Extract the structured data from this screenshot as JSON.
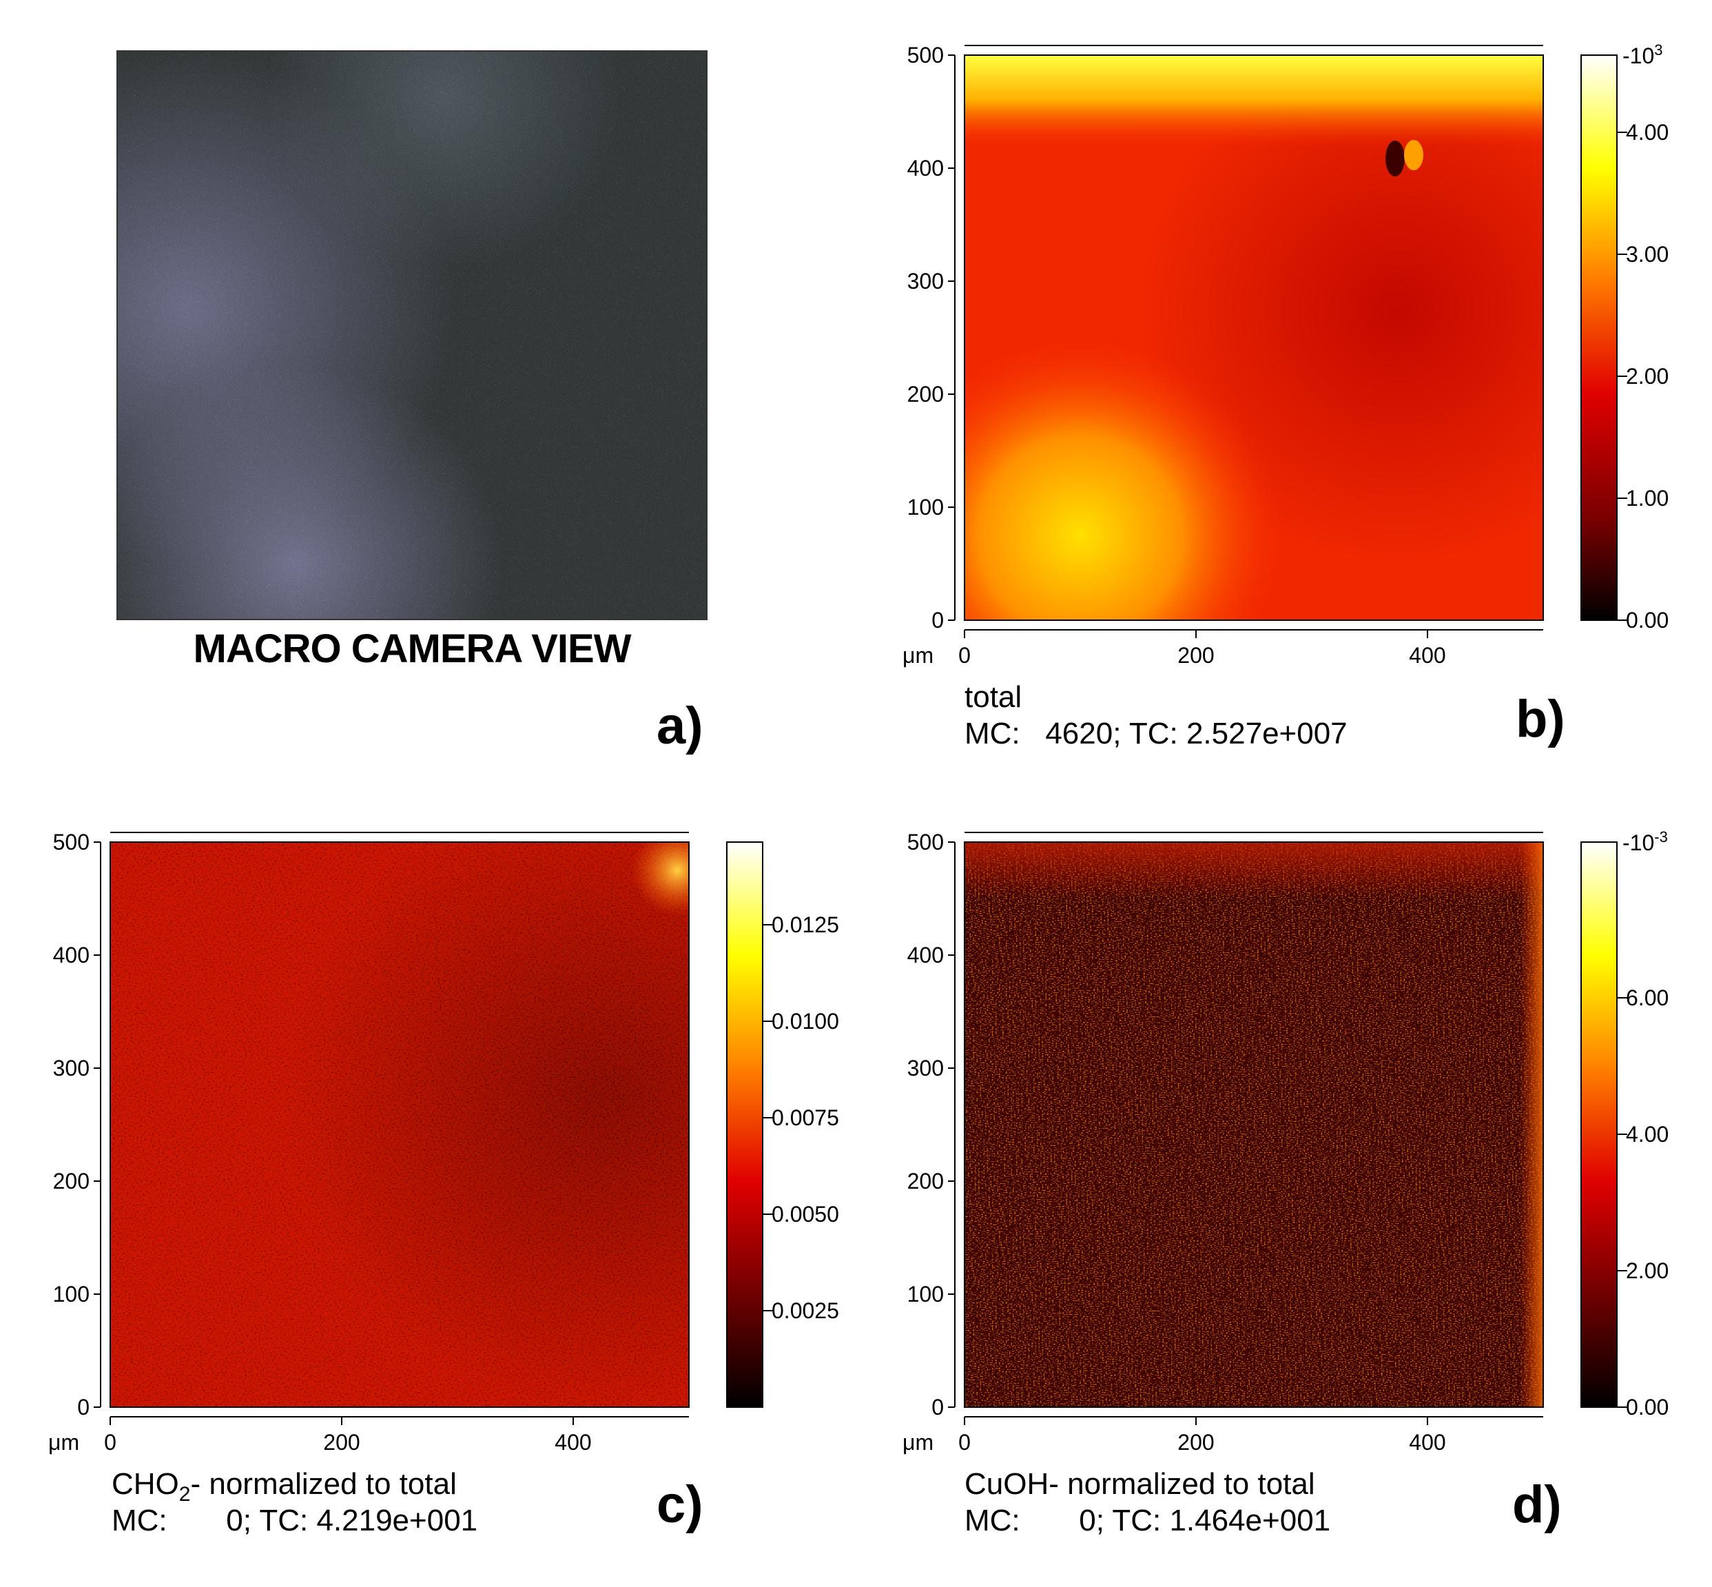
{
  "panel_a": {
    "caption": "MACRO CAMERA VIEW",
    "letter": "a)"
  },
  "panel_b": {
    "letter": "b)",
    "title": "total",
    "stats": "MC:   4620; TC: 2.527e+007",
    "unit_label": "μm",
    "x_ticks": [
      "0",
      "200",
      "400"
    ],
    "y_ticks": [
      "0",
      "100",
      "200",
      "300",
      "400",
      "500"
    ],
    "colorbar_ticks": [
      "0.00",
      "1.00",
      "2.00",
      "3.00",
      "4.00"
    ],
    "colorbar_exponent": "-10",
    "colorbar_exponent_sup": "3"
  },
  "panel_c": {
    "letter": "c)",
    "title_prefix": "CHO",
    "title_sub": "2",
    "title_suffix": "- normalized to total",
    "stats": "MC:       0; TC: 4.219e+001",
    "unit_label": "μm",
    "x_ticks": [
      "0",
      "200",
      "400"
    ],
    "y_ticks": [
      "0",
      "100",
      "200",
      "300",
      "400",
      "500"
    ],
    "colorbar_ticks": [
      "0.0025",
      "0.0050",
      "0.0075",
      "0.0100",
      "0.0125"
    ]
  },
  "panel_d": {
    "letter": "d)",
    "title": "CuOH- normalized to total",
    "stats": "MC:       0; TC: 1.464e+001",
    "unit_label": "μm",
    "x_ticks": [
      "0",
      "200",
      "400"
    ],
    "y_ticks": [
      "0",
      "100",
      "200",
      "300",
      "400",
      "500"
    ],
    "colorbar_ticks": [
      "0.00",
      "2.00",
      "4.00",
      "6.00"
    ],
    "colorbar_exponent": "-10",
    "colorbar_exponent_sup": "-3"
  },
  "colors": {
    "heat_dark": "#1a0000",
    "heat_red": "#e00000",
    "heat_orange": "#ff6a00",
    "heat_yellow": "#ffff00",
    "heat_white": "#ffffff"
  }
}
